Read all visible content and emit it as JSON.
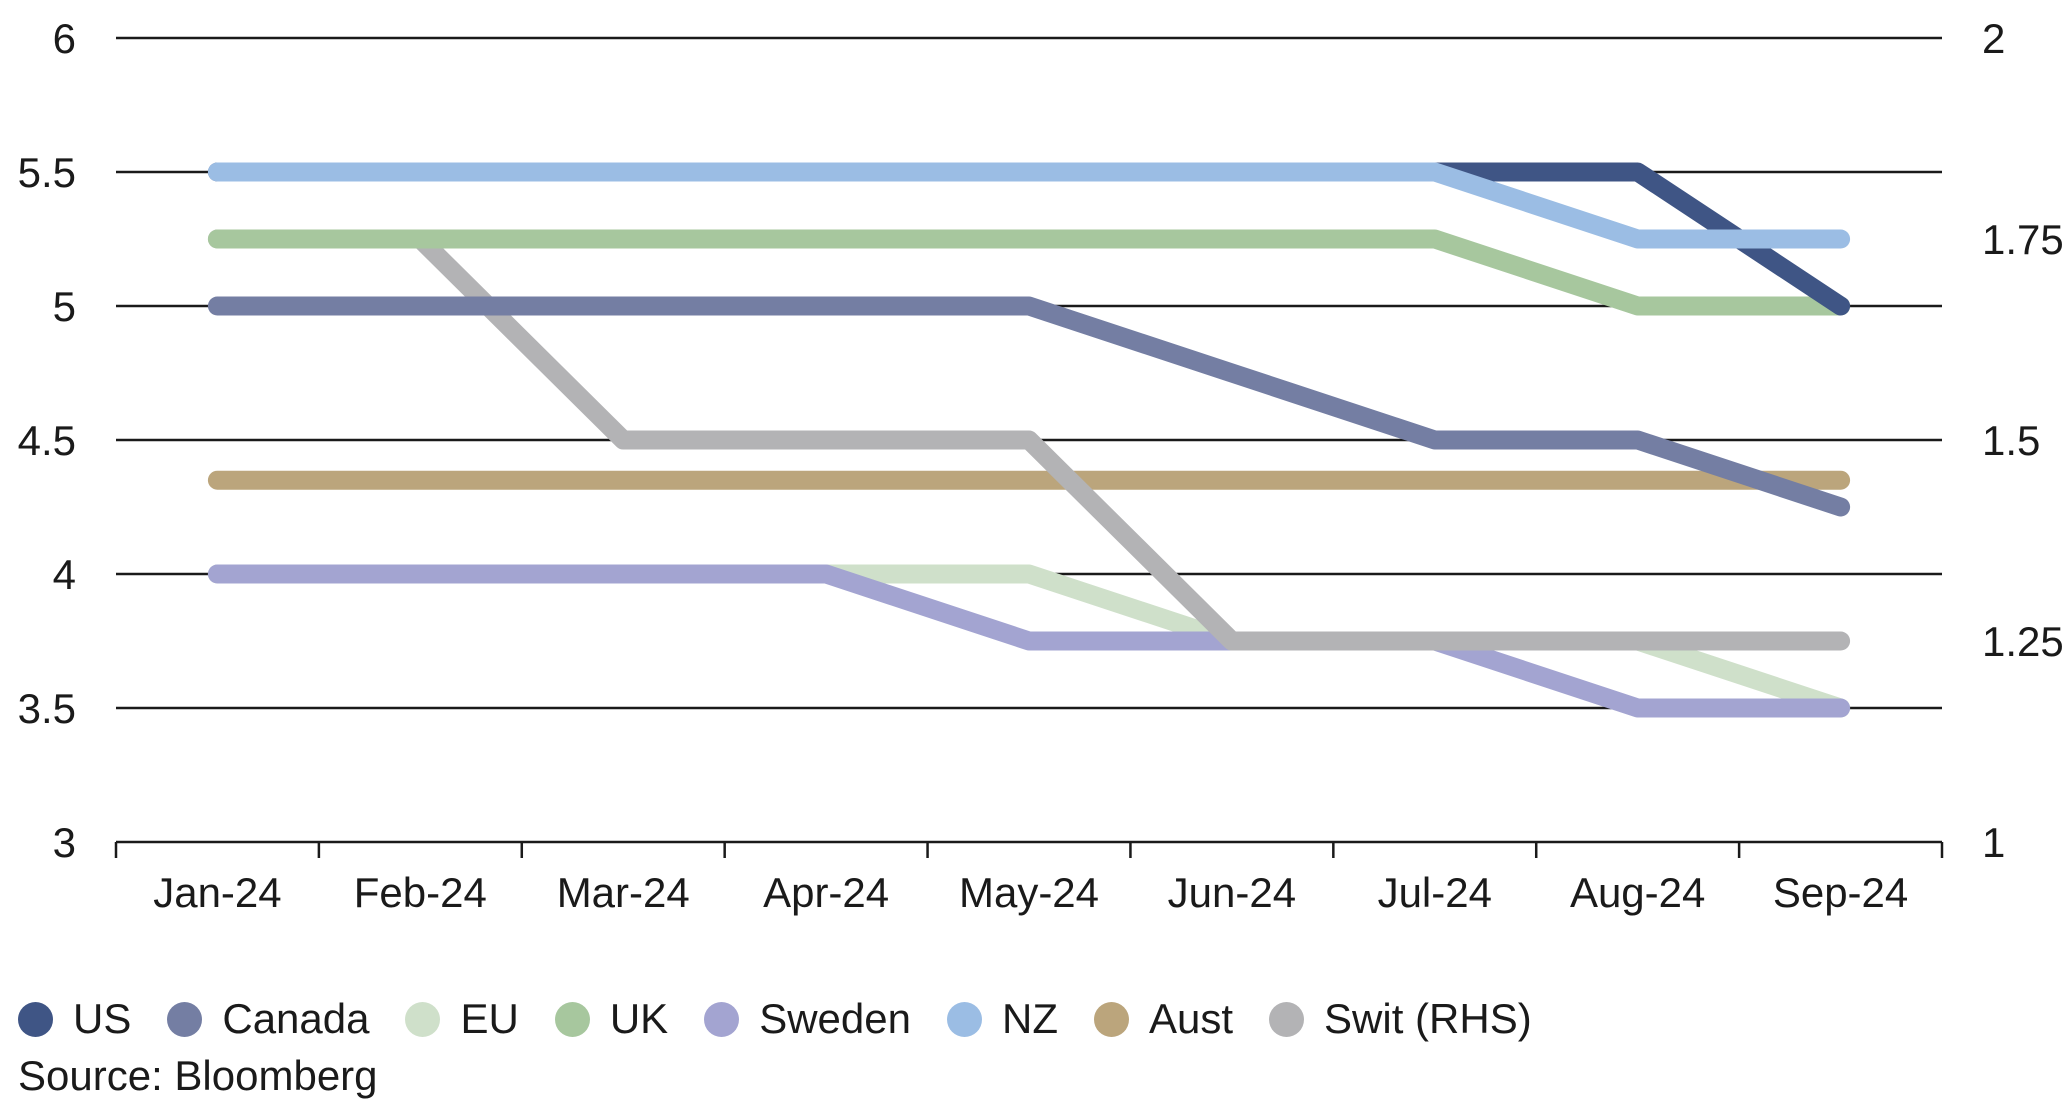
{
  "chart_data": {
    "type": "line",
    "categories": [
      "Jan-24",
      "Feb-24",
      "Mar-24",
      "Apr-24",
      "May-24",
      "Jun-24",
      "Jul-24",
      "Aug-24",
      "Sep-24"
    ],
    "ylim": [
      3,
      6
    ],
    "y_ticks": [
      "6",
      "5.5",
      "5",
      "4.5",
      "4",
      "3.5",
      "3"
    ],
    "y2lim": [
      1,
      2
    ],
    "y2_ticks": [
      "2",
      "1.75",
      "1.5",
      "1.25",
      "1"
    ],
    "grid": true,
    "legend_position": "bottom",
    "series": [
      {
        "name": "US",
        "axis": "left",
        "color": "#3f5585",
        "values": [
          5.5,
          5.5,
          5.5,
          5.5,
          5.5,
          5.5,
          5.5,
          5.5,
          5.0
        ]
      },
      {
        "name": "Canada",
        "axis": "left",
        "color": "#747ea3",
        "values": [
          5.0,
          5.0,
          5.0,
          5.0,
          5.0,
          4.75,
          4.5,
          4.5,
          4.25
        ]
      },
      {
        "name": "EU",
        "axis": "left",
        "color": "#cfe0ca",
        "values": [
          4.0,
          4.0,
          4.0,
          4.0,
          4.0,
          3.75,
          3.75,
          3.75,
          3.5
        ]
      },
      {
        "name": "UK",
        "axis": "left",
        "color": "#a7c79e",
        "values": [
          5.25,
          5.25,
          5.25,
          5.25,
          5.25,
          5.25,
          5.25,
          5.0,
          5.0
        ]
      },
      {
        "name": "Sweden",
        "axis": "left",
        "color": "#a3a4d1",
        "values": [
          4.0,
          4.0,
          4.0,
          4.0,
          3.75,
          3.75,
          3.75,
          3.5,
          3.5
        ]
      },
      {
        "name": "NZ",
        "axis": "left",
        "color": "#9bbde4",
        "values": [
          5.5,
          5.5,
          5.5,
          5.5,
          5.5,
          5.5,
          5.5,
          5.25,
          5.25
        ]
      },
      {
        "name": "Aust",
        "axis": "left",
        "color": "#bba57c",
        "values": [
          4.35,
          4.35,
          4.35,
          4.35,
          4.35,
          4.35,
          4.35,
          4.35,
          4.35
        ]
      },
      {
        "name": "Swit (RHS)",
        "axis": "right",
        "color": "#b3b3b5",
        "values": [
          1.75,
          1.75,
          1.5,
          1.5,
          1.5,
          1.25,
          1.25,
          1.25,
          1.25
        ]
      }
    ]
  },
  "draw_order": [
    "Aust",
    "EU",
    "Sweden",
    "Swit (RHS)",
    "Canada",
    "UK",
    "US",
    "NZ"
  ],
  "source": "Source: Bloomberg"
}
